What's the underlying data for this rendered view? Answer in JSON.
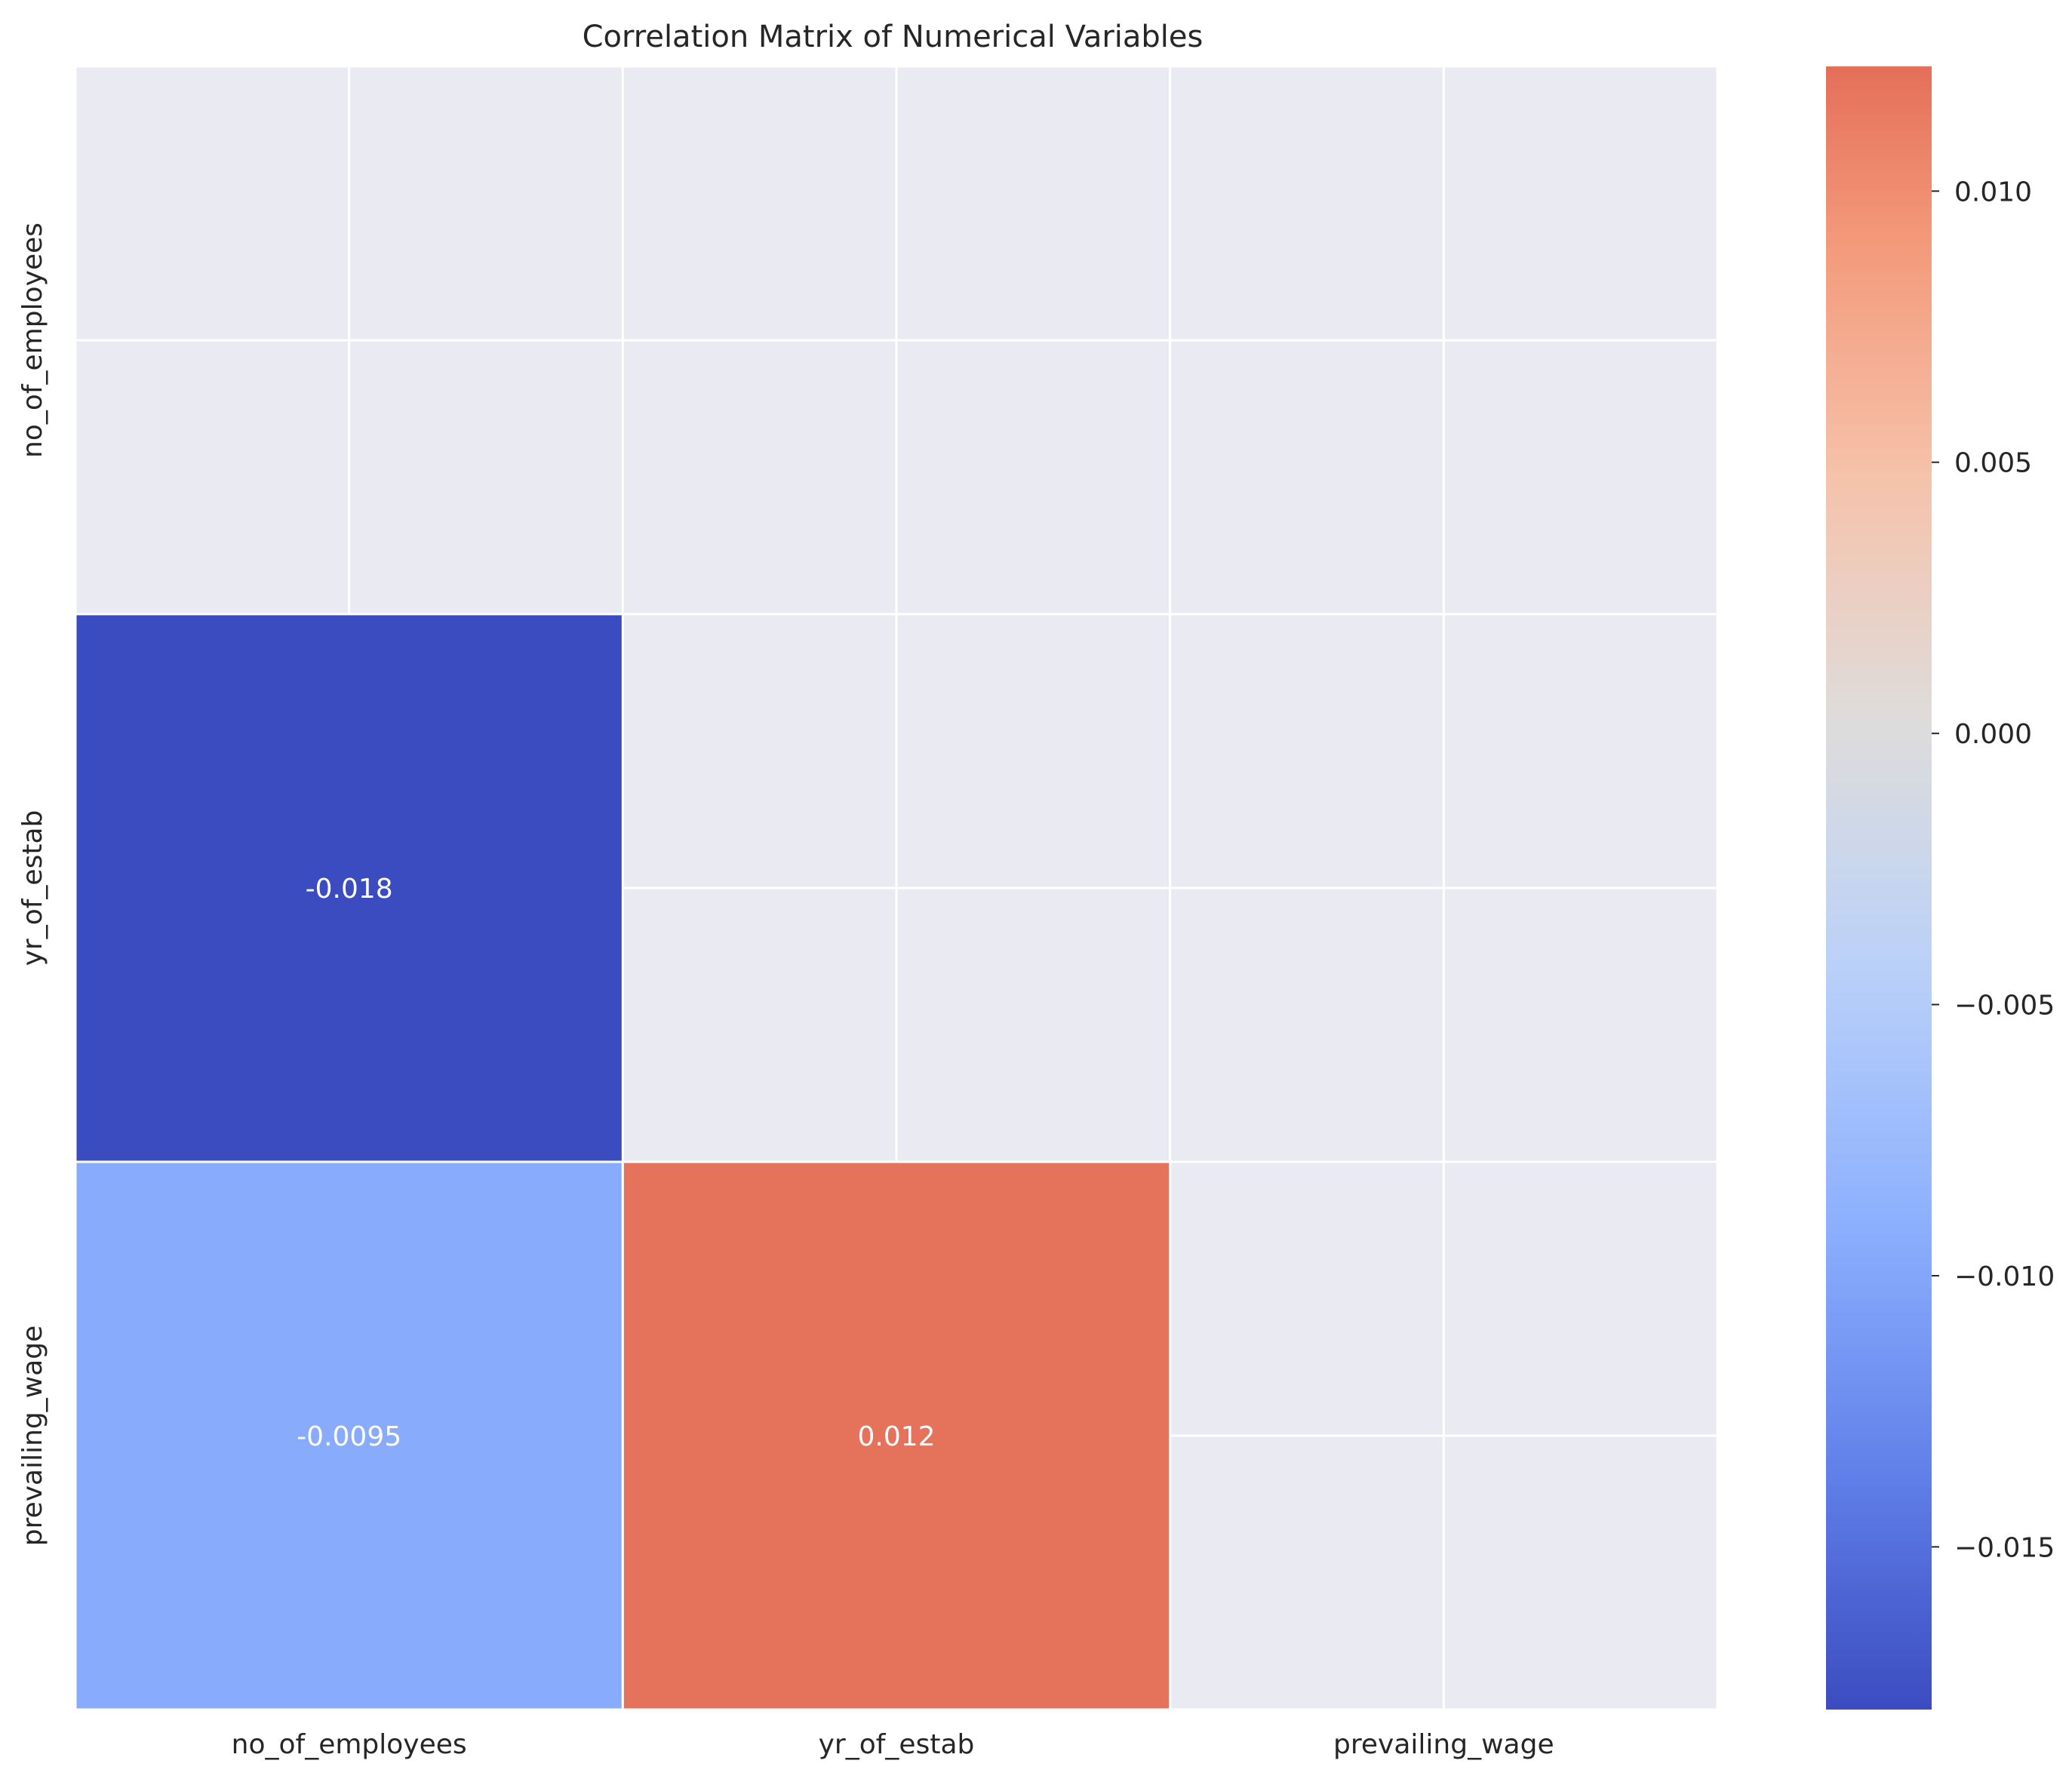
{
  "chart_data": {
    "type": "heatmap",
    "title": "Correlation Matrix of Numerical Variables",
    "variables": [
      "no_of_employees",
      "yr_of_estab",
      "prevailing_wage"
    ],
    "mask": "upper-triangle-including-diagonal",
    "cells": [
      {
        "row": "yr_of_estab",
        "col": "no_of_employees",
        "value": -0.018,
        "label": "-0.018"
      },
      {
        "row": "prevailing_wage",
        "col": "no_of_employees",
        "value": -0.0095,
        "label": "-0.0095"
      },
      {
        "row": "prevailing_wage",
        "col": "yr_of_estab",
        "value": 0.012,
        "label": "0.012"
      }
    ],
    "colormap": "coolwarm",
    "vmin": -0.018,
    "vmax": 0.0123,
    "colorbar": {
      "ticks": [
        0.01,
        0.005,
        0.0,
        -0.005,
        -0.01,
        -0.015
      ],
      "tick_labels": [
        "0.010",
        "0.005",
        "0.000",
        "−0.005",
        "−0.010",
        "−0.015"
      ]
    },
    "grid": true,
    "colors": {
      "background": "#eaeaf2",
      "grid": "#ffffff",
      "cell_border": "#ffffff",
      "text": "#262626",
      "annotation": "#ffffff"
    }
  }
}
